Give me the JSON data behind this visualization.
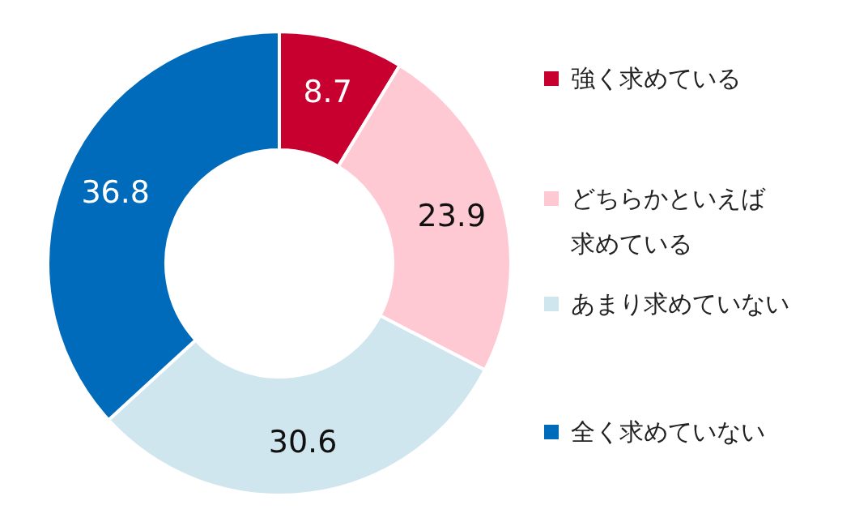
{
  "chart_data": {
    "type": "donut",
    "categories": [
      "強く求めている",
      "どちらかといえば求めている",
      "あまり求めていない",
      "全く求めていない"
    ],
    "values": [
      8.7,
      23.9,
      30.6,
      36.8
    ],
    "colors": [
      "#c8002f",
      "#ffc9d4",
      "#d0e6ee",
      "#006abb"
    ],
    "data_labels": true,
    "legend": "right"
  }
}
